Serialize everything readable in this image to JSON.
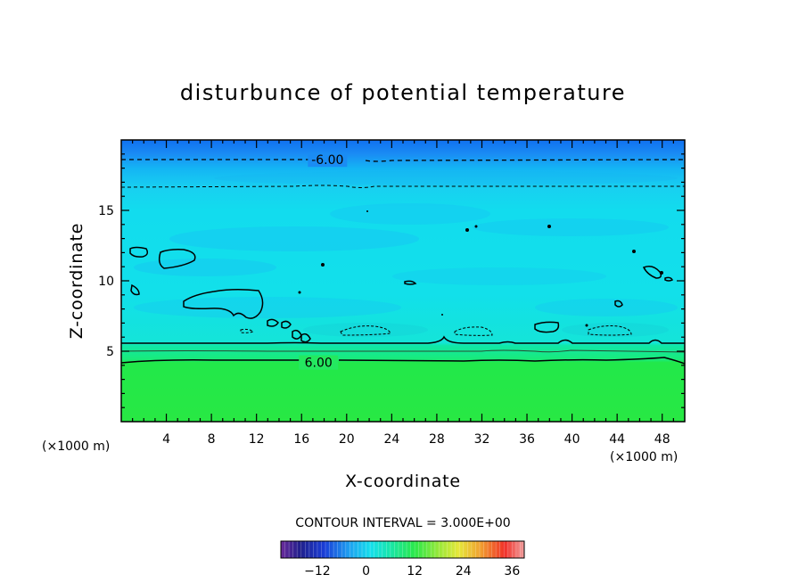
{
  "chart_data": {
    "type": "contour",
    "title": "disturbunce of potential temperature",
    "xlabel": "X-coordinate",
    "ylabel": "Z-coordinate",
    "x_unit": "(×1000 m)",
    "y_unit": "(×1000 m)",
    "xlim": [
      0,
      50
    ],
    "ylim": [
      0,
      20
    ],
    "xticks": [
      4,
      8,
      12,
      16,
      20,
      24,
      28,
      32,
      36,
      40,
      44,
      48
    ],
    "yticks": [
      5,
      10,
      15
    ],
    "contour_interval_label": "CONTOUR INTERVAL = 3.000E+00",
    "contour_labels": [
      {
        "text": "-6.00",
        "x": 18.3,
        "z": 18.6
      },
      {
        "text": "6.00",
        "x": 17.5,
        "z": 4.2
      }
    ],
    "colorbar": {
      "range": [
        -21,
        39
      ],
      "ticks": [
        -12,
        0,
        12,
        24,
        36
      ]
    },
    "field_description_levels": [
      {
        "z_from": 0,
        "z_to": 4.3,
        "value": 9
      },
      {
        "z_from": 4.3,
        "z_to": 5.5,
        "value": 6
      },
      {
        "z_from": 5.5,
        "z_to": 16,
        "value": 0
      },
      {
        "z_from": 16,
        "z_to": 18.5,
        "value": -3
      },
      {
        "z_from": 18.5,
        "z_to": 20,
        "value": -6
      }
    ]
  }
}
